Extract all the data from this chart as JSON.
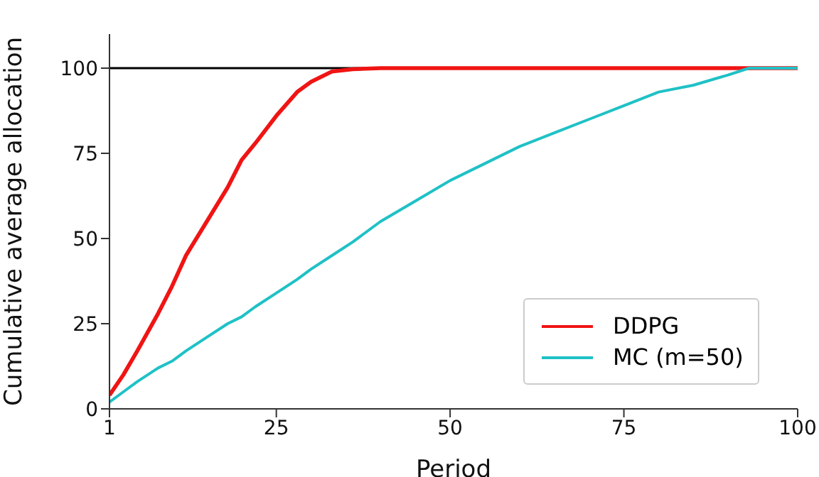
{
  "chart_data": {
    "type": "line",
    "xlabel": "Period",
    "ylabel": "Cumulative average allocation",
    "x": [
      1,
      3,
      5,
      8,
      10,
      12,
      15,
      18,
      20,
      22,
      25,
      28,
      30,
      33,
      36,
      40,
      45,
      50,
      55,
      60,
      65,
      70,
      75,
      80,
      85,
      90,
      93,
      95,
      100
    ],
    "series": [
      {
        "name": "DDPG",
        "color": "#f01414",
        "values": [
          4,
          10,
          17,
          28,
          36,
          45,
          55,
          65,
          73,
          78,
          86,
          93,
          96,
          99,
          99.7,
          100,
          100,
          100,
          100,
          100,
          100,
          100,
          100,
          100,
          100,
          100,
          100,
          100,
          100
        ]
      },
      {
        "name": "MC (m=50)",
        "color": "#1fc1c6",
        "values": [
          2,
          5,
          8,
          12,
          14,
          17,
          21,
          25,
          27,
          30,
          34,
          38,
          41,
          45,
          49,
          55,
          61,
          67,
          72,
          77,
          81,
          85,
          89,
          93,
          95,
          98,
          100,
          100,
          100
        ]
      }
    ],
    "xlim": [
      1,
      100
    ],
    "xticks": [
      1,
      25,
      50,
      75,
      100
    ],
    "ylim": [
      0,
      110
    ],
    "yticks": [
      0,
      25,
      50,
      75,
      100
    ],
    "ref_lines": [
      {
        "axis": "y",
        "value": 100,
        "color": "#000000"
      }
    ],
    "grid": false,
    "legend": "bottom right",
    "marker": "none",
    "line_style": "solid"
  }
}
